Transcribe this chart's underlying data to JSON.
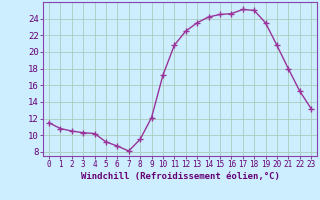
{
  "x": [
    0,
    1,
    2,
    3,
    4,
    5,
    6,
    7,
    8,
    9,
    10,
    11,
    12,
    13,
    14,
    15,
    16,
    17,
    18,
    19,
    20,
    21,
    22,
    23
  ],
  "y": [
    11.5,
    10.8,
    10.5,
    10.3,
    10.2,
    9.2,
    8.7,
    8.1,
    9.5,
    12.1,
    17.2,
    20.8,
    22.5,
    23.5,
    24.2,
    24.5,
    24.6,
    25.1,
    25.0,
    23.5,
    20.8,
    18.0,
    15.3,
    13.2
  ],
  "line_color": "#993399",
  "marker": "+",
  "marker_size": 4,
  "xlabel": "Windchill (Refroidissement éolien,°C)",
  "ylim": [
    7.5,
    26
  ],
  "xlim": [
    -0.5,
    23.5
  ],
  "yticks": [
    8,
    10,
    12,
    14,
    16,
    18,
    20,
    22,
    24
  ],
  "xticks": [
    0,
    1,
    2,
    3,
    4,
    5,
    6,
    7,
    8,
    9,
    10,
    11,
    12,
    13,
    14,
    15,
    16,
    17,
    18,
    19,
    20,
    21,
    22,
    23
  ],
  "bg_color": "#cceeff",
  "grid_color": "#aaccbb",
  "label_color": "#660077",
  "tick_color": "#660077",
  "border_color": "#8844aa",
  "xlabel_fontsize": 6.5,
  "ytick_fontsize": 6.5,
  "xtick_fontsize": 5.5
}
